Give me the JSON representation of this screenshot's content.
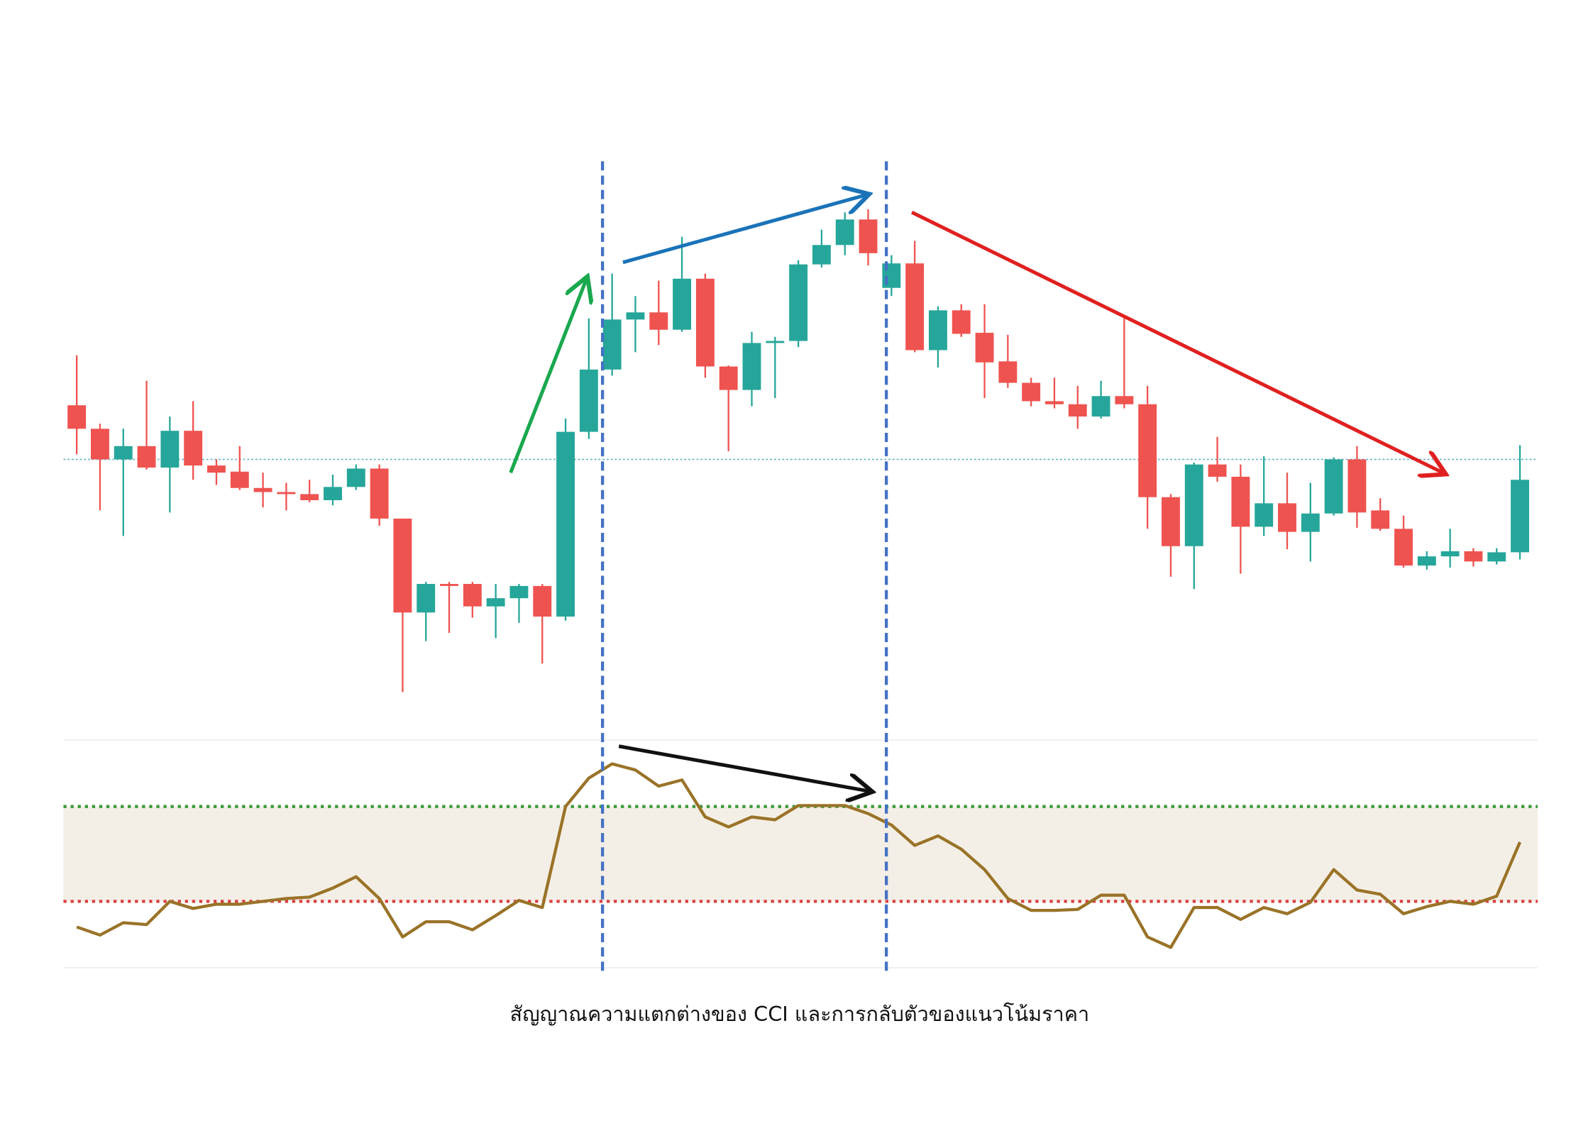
{
  "caption": "สัญญาณความแตกต่างของ CCI และการกลับตัวของแนวโน้มราคา",
  "chart_data": [
    {
      "type": "candlestick",
      "up_color": "#26a69a",
      "down_color": "#ef5350",
      "ylim": [
        0,
        560
      ],
      "reference_line": 250,
      "reference_color": "#6fb7c7",
      "open": [
        303,
        280,
        250,
        263,
        242,
        278,
        244,
        238,
        222,
        218,
        216,
        210,
        223,
        241,
        192,
        100,
        128,
        128,
        106,
        114,
        126,
        96,
        277,
        338,
        387,
        394,
        377,
        427,
        341,
        318,
        364,
        366,
        441,
        460,
        485,
        418,
        442,
        357,
        396,
        374,
        346,
        325,
        307,
        304,
        292,
        312,
        304,
        213,
        165,
        245,
        233,
        184,
        207,
        179,
        197,
        250,
        200,
        182,
        146,
        155,
        160,
        150,
        159
      ],
      "high": [
        352,
        285,
        280,
        327,
        292,
        307,
        250,
        263,
        237,
        227,
        230,
        235,
        245,
        245,
        192,
        130,
        130,
        130,
        128,
        128,
        128,
        290,
        388,
        432,
        410,
        425,
        468,
        432,
        342,
        375,
        370,
        445,
        475,
        492,
        495,
        450,
        464,
        400,
        402,
        402,
        372,
        330,
        330,
        322,
        327,
        388,
        322,
        216,
        247,
        272,
        245,
        253,
        237,
        227,
        252,
        263,
        212,
        195,
        160,
        182,
        163,
        163,
        264
      ],
      "low": [
        255,
        200,
        175,
        240,
        198,
        230,
        225,
        220,
        203,
        200,
        208,
        205,
        220,
        185,
        22,
        72,
        80,
        95,
        75,
        90,
        50,
        92,
        270,
        332,
        355,
        362,
        375,
        330,
        258,
        302,
        310,
        360,
        438,
        450,
        440,
        410,
        355,
        340,
        370,
        310,
        320,
        302,
        300,
        280,
        290,
        300,
        182,
        135,
        123,
        228,
        138,
        175,
        162,
        150,
        195,
        183,
        180,
        144,
        142,
        144,
        145,
        147,
        152
      ],
      "close": [
        280,
        250,
        263,
        242,
        278,
        244,
        237,
        222,
        218,
        216,
        210,
        223,
        241,
        192,
        100,
        128,
        126,
        106,
        114,
        126,
        96,
        277,
        338,
        387,
        394,
        377,
        427,
        341,
        318,
        364,
        366,
        441,
        460,
        485,
        452,
        442,
        357,
        396,
        373,
        345,
        325,
        307,
        304,
        292,
        312,
        304,
        213,
        165,
        245,
        233,
        184,
        207,
        179,
        197,
        250,
        198,
        182,
        146,
        155,
        160,
        150,
        159,
        230
      ]
    },
    {
      "type": "line",
      "color": "#9a7328",
      "ylim": [
        -240,
        240
      ],
      "levels": [
        100,
        -100
      ],
      "level_colors": [
        "#3a9a3a",
        "#d94040"
      ],
      "band_color": "#f4efe6",
      "values": [
        -154,
        -171,
        -145,
        -149,
        -100,
        -115,
        -106,
        -106,
        -100,
        -94,
        -91,
        -72,
        -48,
        -94,
        -175,
        -143,
        -143,
        -160,
        -130,
        -98,
        -113,
        100,
        160,
        190,
        177,
        143,
        156,
        78,
        57,
        78,
        72,
        102,
        102,
        102,
        85,
        61,
        18,
        38,
        10,
        -33,
        -94,
        -119,
        -119,
        -117,
        -87,
        -87,
        -175,
        -197,
        -113,
        -113,
        -138,
        -113,
        -126,
        -102,
        -33,
        -76,
        -85,
        -126,
        -111,
        -100,
        -106,
        -89,
        25
      ]
    }
  ]
}
